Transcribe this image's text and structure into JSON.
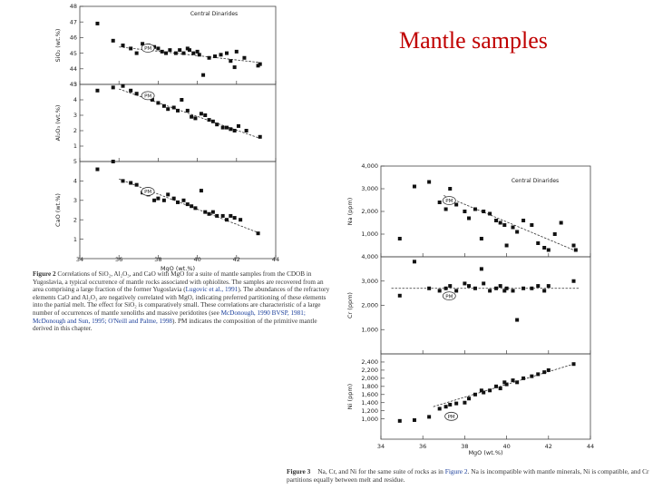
{
  "slide_title": "Mantle samples",
  "left_caption": {
    "label": "Figure 2",
    "part1": "Correlations of SiO₂, Al₂O₃, and CaO with MgO for a suite of mantle samples from the CDOB in Yugoslavia, a typical occurrence of mantle rocks associated with ophiolites. The samples are recovered from an area comprising a large fraction of the former Yugoslavia (",
    "ref1": "Lugovic et al., 1991",
    "part2": "). The abundances of the refractory elements CaO and Al₂O₃ are negatively correlated with MgO, indicating preferred partitioning of these elements into the partial melt. The effect for SiO₂ is comparatively small. These correlations are characteristic of a large number of occurrences of mantle xenoliths and massive peridotites (see ",
    "ref2": "McDonough, 1990 BVSP, 1981; McDonough and Sun, 1995; O'Neill and Palme, 1998",
    "part3": "). PM indicates the composition of the primitive mantle derived in this chapter."
  },
  "right_caption": {
    "label": "Figure 3",
    "part1": "Na, Cr, and Ni for the same suite of rocks as in ",
    "ref1": "Figure 2",
    "part2": ". Na is incompatible with mantle minerals, Ni is compatible, and Cr partitions equally between melt and residue."
  },
  "colors": {
    "title": "#c00000",
    "points": "#111111",
    "axis": "#444444",
    "link": "#1a3e9a"
  },
  "chart_data": [
    {
      "type": "scatter",
      "figure": "Figure 2",
      "x_label": "MgO (wt.%)",
      "x_ticks": [
        "34",
        "36",
        "38",
        "40",
        "42",
        "44"
      ],
      "x_range": [
        34,
        44
      ],
      "legend_text": "Central Dinarides",
      "panels": [
        {
          "ylabel": "SiO₂ (wt.%)",
          "ylim": [
            43,
            48
          ],
          "yticks": [
            "43",
            "44",
            "45",
            "46",
            "47",
            "48"
          ],
          "pm": [
            37.2,
            45.5
          ],
          "trend": [
            [
              36,
              45.4
            ],
            [
              43.2,
              44.4
            ]
          ],
          "points": [
            [
              34.9,
              46.9
            ],
            [
              35.7,
              45.8
            ],
            [
              36.2,
              45.5
            ],
            [
              36.6,
              45.3
            ],
            [
              36.9,
              45.0
            ],
            [
              37.2,
              45.6
            ],
            [
              37.5,
              45.5
            ],
            [
              37.8,
              45.4
            ],
            [
              38.0,
              45.3
            ],
            [
              38.2,
              45.1
            ],
            [
              38.4,
              45.0
            ],
            [
              38.6,
              45.2
            ],
            [
              38.9,
              45.0
            ],
            [
              39.1,
              45.2
            ],
            [
              39.3,
              45.0
            ],
            [
              39.5,
              45.3
            ],
            [
              39.6,
              45.2
            ],
            [
              39.8,
              45.0
            ],
            [
              40.0,
              45.1
            ],
            [
              40.1,
              44.9
            ],
            [
              40.3,
              43.6
            ],
            [
              40.6,
              44.7
            ],
            [
              40.9,
              44.8
            ],
            [
              41.2,
              44.9
            ],
            [
              41.5,
              45.0
            ],
            [
              41.7,
              44.5
            ],
            [
              41.9,
              44.1
            ],
            [
              42.0,
              45.1
            ],
            [
              42.4,
              44.7
            ],
            [
              43.1,
              44.2
            ],
            [
              43.2,
              44.3
            ]
          ]
        },
        {
          "ylabel": "Al₂O₃ (wt.%)",
          "ylim": [
            0,
            5
          ],
          "yticks": [
            "1",
            "2",
            "3",
            "4",
            "5"
          ],
          "pm": [
            37.2,
            4.45
          ],
          "trend": [
            [
              36,
              4.7
            ],
            [
              43.2,
              1.5
            ]
          ],
          "points": [
            [
              34.9,
              4.6
            ],
            [
              35.7,
              4.8
            ],
            [
              36.2,
              4.9
            ],
            [
              36.6,
              4.6
            ],
            [
              36.9,
              4.4
            ],
            [
              37.4,
              4.2
            ],
            [
              37.7,
              4.0
            ],
            [
              38.0,
              3.8
            ],
            [
              38.3,
              3.6
            ],
            [
              38.5,
              3.4
            ],
            [
              38.8,
              3.5
            ],
            [
              39.0,
              3.3
            ],
            [
              39.2,
              4.0
            ],
            [
              39.5,
              3.3
            ],
            [
              39.7,
              2.9
            ],
            [
              39.9,
              2.8
            ],
            [
              40.2,
              3.1
            ],
            [
              40.4,
              3.0
            ],
            [
              40.6,
              2.7
            ],
            [
              40.8,
              2.6
            ],
            [
              41.0,
              2.4
            ],
            [
              41.3,
              2.2
            ],
            [
              41.5,
              2.2
            ],
            [
              41.7,
              2.1
            ],
            [
              41.9,
              2.0
            ],
            [
              42.1,
              2.3
            ],
            [
              42.5,
              2.0
            ],
            [
              43.2,
              1.6
            ]
          ]
        },
        {
          "ylabel": "CaO (wt.%)",
          "ylim": [
            0,
            5
          ],
          "yticks": [
            "1",
            "2",
            "3",
            "4",
            "5"
          ],
          "pm": [
            37.2,
            3.6
          ],
          "trend": [
            [
              36,
              4.1
            ],
            [
              43.2,
              1.3
            ]
          ],
          "points": [
            [
              34.9,
              4.6
            ],
            [
              35.7,
              5.0
            ],
            [
              36.2,
              4.0
            ],
            [
              36.6,
              3.9
            ],
            [
              36.9,
              3.8
            ],
            [
              37.2,
              3.4
            ],
            [
              37.5,
              3.3
            ],
            [
              37.8,
              3.0
            ],
            [
              38.0,
              3.1
            ],
            [
              38.3,
              3.0
            ],
            [
              38.5,
              3.3
            ],
            [
              38.8,
              3.1
            ],
            [
              39.0,
              2.9
            ],
            [
              39.3,
              3.0
            ],
            [
              39.5,
              2.8
            ],
            [
              39.7,
              2.7
            ],
            [
              39.9,
              2.6
            ],
            [
              40.2,
              3.5
            ],
            [
              40.4,
              2.4
            ],
            [
              40.6,
              2.3
            ],
            [
              40.8,
              2.4
            ],
            [
              41.0,
              2.2
            ],
            [
              41.3,
              2.2
            ],
            [
              41.5,
              2.0
            ],
            [
              41.7,
              2.2
            ],
            [
              41.9,
              2.1
            ],
            [
              42.2,
              2.0
            ],
            [
              43.1,
              1.3
            ]
          ]
        }
      ]
    },
    {
      "type": "scatter",
      "figure": "Figure 3",
      "x_label": "MgO (wt.%)",
      "x_ticks": [
        "34",
        "36",
        "38",
        "40",
        "42",
        "44"
      ],
      "x_range": [
        34,
        44
      ],
      "legend_text": "Central Dinarides",
      "panels": [
        {
          "ylabel": "Na (ppm)",
          "ylim": [
            0,
            4000
          ],
          "yticks": [
            "1,000",
            "2,000",
            "3,000",
            "4,000"
          ],
          "pm": [
            37.0,
            2600
          ],
          "trend": [
            [
              37,
              2700
            ],
            [
              43.2,
              300
            ]
          ],
          "points": [
            [
              34.9,
              800
            ],
            [
              35.6,
              3100
            ],
            [
              36.3,
              3300
            ],
            [
              36.8,
              2400
            ],
            [
              37.1,
              2100
            ],
            [
              37.3,
              3000
            ],
            [
              37.6,
              2300
            ],
            [
              38.0,
              2000
            ],
            [
              38.2,
              1700
            ],
            [
              38.5,
              2100
            ],
            [
              38.8,
              800
            ],
            [
              38.9,
              2000
            ],
            [
              39.2,
              1900
            ],
            [
              39.5,
              1600
            ],
            [
              39.7,
              1500
            ],
            [
              39.9,
              1400
            ],
            [
              40.0,
              500
            ],
            [
              40.3,
              1300
            ],
            [
              40.5,
              1100
            ],
            [
              40.8,
              1600
            ],
            [
              41.2,
              1400
            ],
            [
              41.5,
              600
            ],
            [
              41.8,
              400
            ],
            [
              42.0,
              300
            ],
            [
              42.3,
              1000
            ],
            [
              42.6,
              1500
            ],
            [
              43.2,
              500
            ],
            [
              43.3,
              300
            ]
          ]
        },
        {
          "ylabel": "Cr (ppm)",
          "ylim": [
            0,
            4000
          ],
          "yticks": [
            "1,000",
            "2,000",
            "3,000",
            "4,000"
          ],
          "pm": [
            37.0,
            2500
          ],
          "trend": [
            [
              34.5,
              2700
            ],
            [
              43.5,
              2700
            ]
          ],
          "points": [
            [
              34.9,
              2400
            ],
            [
              35.6,
              3800
            ],
            [
              36.3,
              2700
            ],
            [
              36.8,
              2600
            ],
            [
              37.1,
              2700
            ],
            [
              37.3,
              2800
            ],
            [
              37.6,
              2600
            ],
            [
              38.0,
              2900
            ],
            [
              38.2,
              2800
            ],
            [
              38.5,
              2700
            ],
            [
              38.8,
              3500
            ],
            [
              38.9,
              2900
            ],
            [
              39.2,
              2600
            ],
            [
              39.5,
              2700
            ],
            [
              39.7,
              2800
            ],
            [
              39.9,
              2600
            ],
            [
              40.0,
              2700
            ],
            [
              40.3,
              2600
            ],
            [
              40.5,
              1400
            ],
            [
              40.8,
              2700
            ],
            [
              41.2,
              2700
            ],
            [
              41.5,
              2800
            ],
            [
              41.8,
              2600
            ],
            [
              42.0,
              2800
            ],
            [
              43.2,
              3000
            ]
          ]
        },
        {
          "ylabel": "Ni (ppm)",
          "ylim": [
            500,
            2600
          ],
          "yticks": [
            "1,000",
            "1,200",
            "1,400",
            "1,600",
            "1,800",
            "2,000",
            "2,200",
            "2,400"
          ],
          "pm": [
            37.1,
            1130
          ],
          "trend": [
            [
              36.5,
              1300
            ],
            [
              43.2,
              2350
            ]
          ],
          "points": [
            [
              34.9,
              950
            ],
            [
              35.6,
              970
            ],
            [
              36.3,
              1050
            ],
            [
              36.8,
              1250
            ],
            [
              37.1,
              1300
            ],
            [
              37.3,
              1350
            ],
            [
              37.6,
              1380
            ],
            [
              38.0,
              1400
            ],
            [
              38.2,
              1500
            ],
            [
              38.5,
              1600
            ],
            [
              38.8,
              1700
            ],
            [
              38.9,
              1650
            ],
            [
              39.2,
              1700
            ],
            [
              39.5,
              1800
            ],
            [
              39.7,
              1750
            ],
            [
              39.9,
              1900
            ],
            [
              40.0,
              1850
            ],
            [
              40.3,
              1950
            ],
            [
              40.5,
              1900
            ],
            [
              40.8,
              2000
            ],
            [
              41.2,
              2050
            ],
            [
              41.5,
              2100
            ],
            [
              41.8,
              2150
            ],
            [
              42.0,
              2200
            ],
            [
              43.2,
              2350
            ]
          ]
        }
      ]
    }
  ]
}
